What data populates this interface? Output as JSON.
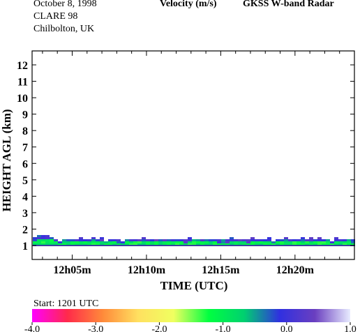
{
  "header": {
    "date": "October   8, 1998",
    "campaign": "CLARE 98",
    "site": "Chilbolton, UK",
    "quantity": "Velocity (m/s)",
    "instrument": "GKSS  W-band Radar"
  },
  "footer": {
    "start_label": "Start:  1201 UTC"
  },
  "chart_data": {
    "type": "heatmap",
    "title": "Velocity (m/s)",
    "xlabel": "TIME (UTC)",
    "ylabel": "HEIGHT AGL (km)",
    "x_tick_labels": [
      "12h05m",
      "12h10m",
      "12h15m",
      "12h20m"
    ],
    "x_ticks_minutes": [
      5,
      10,
      15,
      20
    ],
    "x_range_minutes": [
      2.3,
      24.0
    ],
    "y_ticks": [
      1,
      2,
      3,
      4,
      5,
      6,
      7,
      8,
      9,
      10,
      11,
      12
    ],
    "ylim": [
      0.15,
      12.85
    ],
    "echo_layer": {
      "base_km": 1.0,
      "top_km": 1.45,
      "velocity_range_ms": [
        -1.5,
        0.3
      ],
      "dominant_velocity_ms": -1.0
    },
    "colorbar": {
      "min": -4.0,
      "max": 1.0,
      "tick_labels": [
        "-4.0",
        "-3.0",
        "-2.0",
        "-1.0",
        "0.0",
        "1.0"
      ],
      "colors": [
        "#ff00ff",
        "#ff2a4a",
        "#ff8a3a",
        "#ffe060",
        "#f0ff60",
        "#00ff40",
        "#00d070",
        "#3030e0",
        "#6a3fc0",
        "#e8ecff"
      ]
    },
    "grid": false,
    "legend": "colorbar-bottom"
  }
}
